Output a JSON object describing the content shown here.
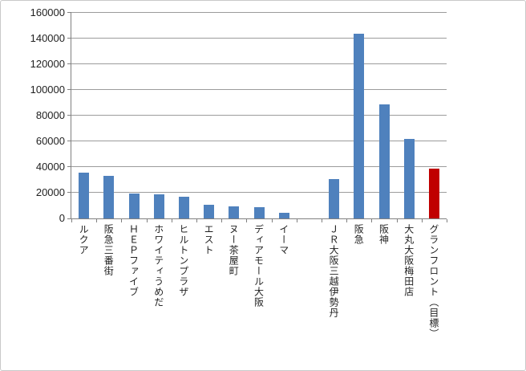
{
  "chart": {
    "background": "#FFFFFF",
    "frame_border_color": "#C9C9C9"
  },
  "chart_data": {
    "type": "bar",
    "title": "",
    "xlabel": "",
    "ylabel": "",
    "ylim": [
      0,
      160000
    ],
    "ytick_step": 20000,
    "yticks": [
      0,
      20000,
      40000,
      60000,
      80000,
      100000,
      120000,
      140000,
      160000
    ],
    "grid_on": true,
    "legend": "none",
    "default_bar_color": "#4F81BD",
    "highlight_color": "#C00000",
    "grid_color": "#9C9C9C",
    "axis_color": "#808080",
    "text_color": "#1F1F1F",
    "points": [
      {
        "label": "ルクア",
        "value": 35500
      },
      {
        "label": "阪急三番街",
        "value": 33000
      },
      {
        "label": "ＨＥＰファイブ",
        "value": 19500
      },
      {
        "label": "ホワイティうめだ",
        "value": 18500
      },
      {
        "label": "ヒルトンプラザ",
        "value": 17000
      },
      {
        "label": "エスト",
        "value": 10500
      },
      {
        "label": "ヌー茶屋町",
        "value": 9500
      },
      {
        "label": "ディアモール大阪",
        "value": 8500
      },
      {
        "label": "イーマ",
        "value": 4500
      },
      {
        "label": "",
        "value": null
      },
      {
        "label": "ＪＲ大阪三越伊勢丹",
        "value": 30500
      },
      {
        "label": "阪急",
        "value": 143500
      },
      {
        "label": "阪神",
        "value": 88500
      },
      {
        "label": "大丸大阪梅田店",
        "value": 62000
      },
      {
        "label": "グランフロント（目標）",
        "value": 39000,
        "color": "#C00000"
      }
    ]
  }
}
